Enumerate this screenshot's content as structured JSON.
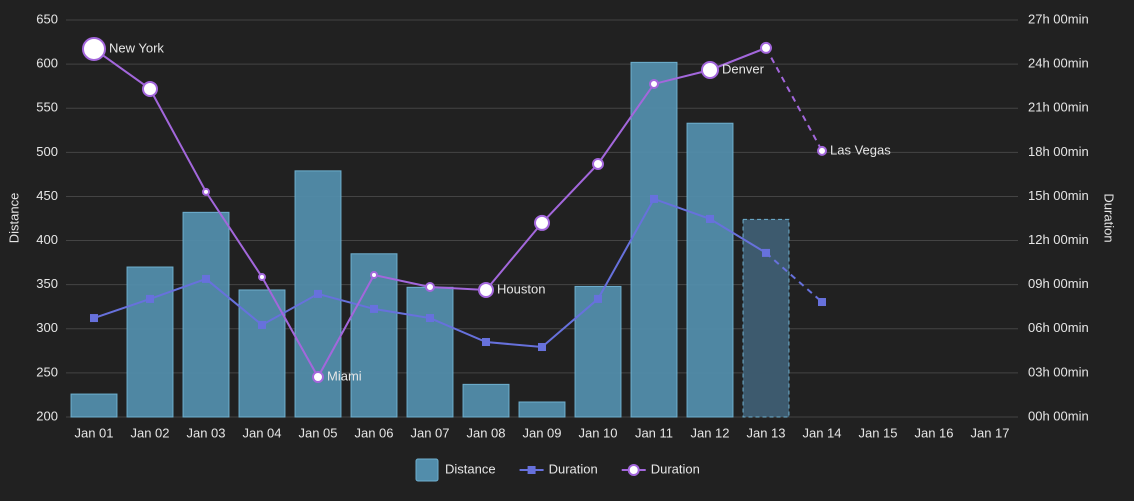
{
  "chart_data": {
    "type": "bar",
    "categories": [
      "Jan 01",
      "Jan 02",
      "Jan 03",
      "Jan 04",
      "Jan 05",
      "Jan 06",
      "Jan 07",
      "Jan 08",
      "Jan 09",
      "Jan 10",
      "Jan 11",
      "Jan 12",
      "Jan 13",
      "Jan 14",
      "Jan 15",
      "Jan 16",
      "Jan 17"
    ],
    "ylabel": "Distance",
    "y2label": "Duration",
    "ylim": [
      200,
      650
    ],
    "yticks": [
      200,
      250,
      300,
      350,
      400,
      450,
      500,
      550,
      600,
      650
    ],
    "y2lim": [
      0,
      27
    ],
    "y2ticks": [
      {
        "value": 0,
        "label": "00h 00min"
      },
      {
        "value": 3,
        "label": "03h 00min"
      },
      {
        "value": 6,
        "label": "06h 00min"
      },
      {
        "value": 9,
        "label": "09h 00min"
      },
      {
        "value": 12,
        "label": "12h 00min"
      },
      {
        "value": 15,
        "label": "15h 00min"
      },
      {
        "value": 18,
        "label": "18h 00min"
      },
      {
        "value": 21,
        "label": "21h 00min"
      },
      {
        "value": 24,
        "label": "24h 00min"
      },
      {
        "value": 27,
        "label": "27h 00min"
      }
    ],
    "grid": true,
    "dashed_from": "Jan 13",
    "legend": "bottom",
    "series": [
      {
        "name": "Distance",
        "type": "bar",
        "color": "#528dab",
        "values": [
          226,
          370,
          432,
          344,
          479,
          385,
          347,
          237,
          217,
          348,
          602,
          533,
          424,
          null,
          null,
          null,
          null
        ]
      },
      {
        "name": "Duration",
        "type": "line",
        "marker": "square",
        "axis": "y2",
        "color": "#6771dc",
        "values": [
          6.73,
          8.03,
          9.39,
          6.26,
          8.37,
          7.35,
          6.73,
          5.1,
          4.76,
          8.03,
          14.83,
          13.47,
          11.16,
          7.82,
          null,
          null,
          null
        ]
      },
      {
        "name": "Duration",
        "type": "line",
        "marker": "circle",
        "axis": "y2",
        "color": "#a367dc",
        "values": [
          25.03,
          22.31,
          15.31,
          9.52,
          2.72,
          9.66,
          8.84,
          8.64,
          13.2,
          17.21,
          22.65,
          23.6,
          25.1,
          18.1,
          null,
          null,
          null
        ],
        "sizes": [
          11,
          7,
          3,
          3,
          5,
          3,
          4,
          7,
          7,
          5,
          4,
          8,
          5,
          4,
          null,
          null,
          null
        ],
        "labels": [
          "New York",
          null,
          null,
          null,
          "Miami",
          null,
          null,
          "Houston",
          null,
          null,
          null,
          "Denver",
          null,
          "Las Vegas",
          null,
          null,
          null
        ]
      }
    ]
  }
}
